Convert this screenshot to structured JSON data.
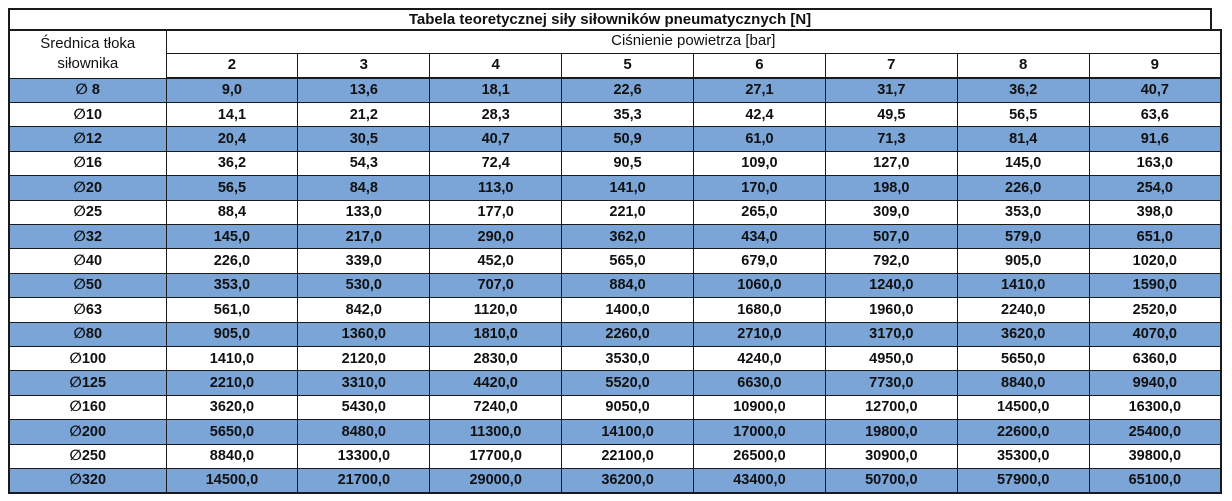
{
  "chart_data": {
    "type": "table",
    "title": "Tabela teoretycznej siły siłowników pneumatycznych [N]",
    "row_header_label": "Średnica tłoka siłownika",
    "column_group_label": "Ciśnienie powietrza [bar]",
    "columns": [
      "2",
      "3",
      "4",
      "5",
      "6",
      "7",
      "8",
      "9"
    ],
    "rows": [
      {
        "diameter": "∅ 8",
        "highlight": true,
        "values": [
          "9,0",
          "13,6",
          "18,1",
          "22,6",
          "27,1",
          "31,7",
          "36,2",
          "40,7"
        ]
      },
      {
        "diameter": "∅10",
        "highlight": false,
        "values": [
          "14,1",
          "21,2",
          "28,3",
          "35,3",
          "42,4",
          "49,5",
          "56,5",
          "63,6"
        ]
      },
      {
        "diameter": "∅12",
        "highlight": true,
        "values": [
          "20,4",
          "30,5",
          "40,7",
          "50,9",
          "61,0",
          "71,3",
          "81,4",
          "91,6"
        ]
      },
      {
        "diameter": "∅16",
        "highlight": false,
        "values": [
          "36,2",
          "54,3",
          "72,4",
          "90,5",
          "109,0",
          "127,0",
          "145,0",
          "163,0"
        ]
      },
      {
        "diameter": "∅20",
        "highlight": true,
        "values": [
          "56,5",
          "84,8",
          "113,0",
          "141,0",
          "170,0",
          "198,0",
          "226,0",
          "254,0"
        ]
      },
      {
        "diameter": "∅25",
        "highlight": false,
        "values": [
          "88,4",
          "133,0",
          "177,0",
          "221,0",
          "265,0",
          "309,0",
          "353,0",
          "398,0"
        ]
      },
      {
        "diameter": "∅32",
        "highlight": true,
        "values": [
          "145,0",
          "217,0",
          "290,0",
          "362,0",
          "434,0",
          "507,0",
          "579,0",
          "651,0"
        ]
      },
      {
        "diameter": "∅40",
        "highlight": false,
        "values": [
          "226,0",
          "339,0",
          "452,0",
          "565,0",
          "679,0",
          "792,0",
          "905,0",
          "1020,0"
        ]
      },
      {
        "diameter": "∅50",
        "highlight": true,
        "values": [
          "353,0",
          "530,0",
          "707,0",
          "884,0",
          "1060,0",
          "1240,0",
          "1410,0",
          "1590,0"
        ]
      },
      {
        "diameter": "∅63",
        "highlight": false,
        "values": [
          "561,0",
          "842,0",
          "1120,0",
          "1400,0",
          "1680,0",
          "1960,0",
          "2240,0",
          "2520,0"
        ]
      },
      {
        "diameter": "∅80",
        "highlight": true,
        "values": [
          "905,0",
          "1360,0",
          "1810,0",
          "2260,0",
          "2710,0",
          "3170,0",
          "3620,0",
          "4070,0"
        ]
      },
      {
        "diameter": "∅100",
        "highlight": false,
        "values": [
          "1410,0",
          "2120,0",
          "2830,0",
          "3530,0",
          "4240,0",
          "4950,0",
          "5650,0",
          "6360,0"
        ]
      },
      {
        "diameter": "∅125",
        "highlight": true,
        "values": [
          "2210,0",
          "3310,0",
          "4420,0",
          "5520,0",
          "6630,0",
          "7730,0",
          "8840,0",
          "9940,0"
        ]
      },
      {
        "diameter": "∅160",
        "highlight": false,
        "values": [
          "3620,0",
          "5430,0",
          "7240,0",
          "9050,0",
          "10900,0",
          "12700,0",
          "14500,0",
          "16300,0"
        ]
      },
      {
        "diameter": "∅200",
        "highlight": true,
        "values": [
          "5650,0",
          "8480,0",
          "11300,0",
          "14100,0",
          "17000,0",
          "19800,0",
          "22600,0",
          "25400,0"
        ]
      },
      {
        "diameter": "∅250",
        "highlight": false,
        "values": [
          "8840,0",
          "13300,0",
          "17700,0",
          "22100,0",
          "26500,0",
          "30900,0",
          "35300,0",
          "39800,0"
        ]
      },
      {
        "diameter": "∅320",
        "highlight": true,
        "values": [
          "14500,0",
          "21700,0",
          "29000,0",
          "36200,0",
          "43400,0",
          "50700,0",
          "57900,0",
          "65100,0"
        ]
      }
    ]
  },
  "colors": {
    "highlight_row": "#7BA4D7",
    "border": "#1a1a1a",
    "text": "#111111",
    "background": "#ffffff"
  }
}
